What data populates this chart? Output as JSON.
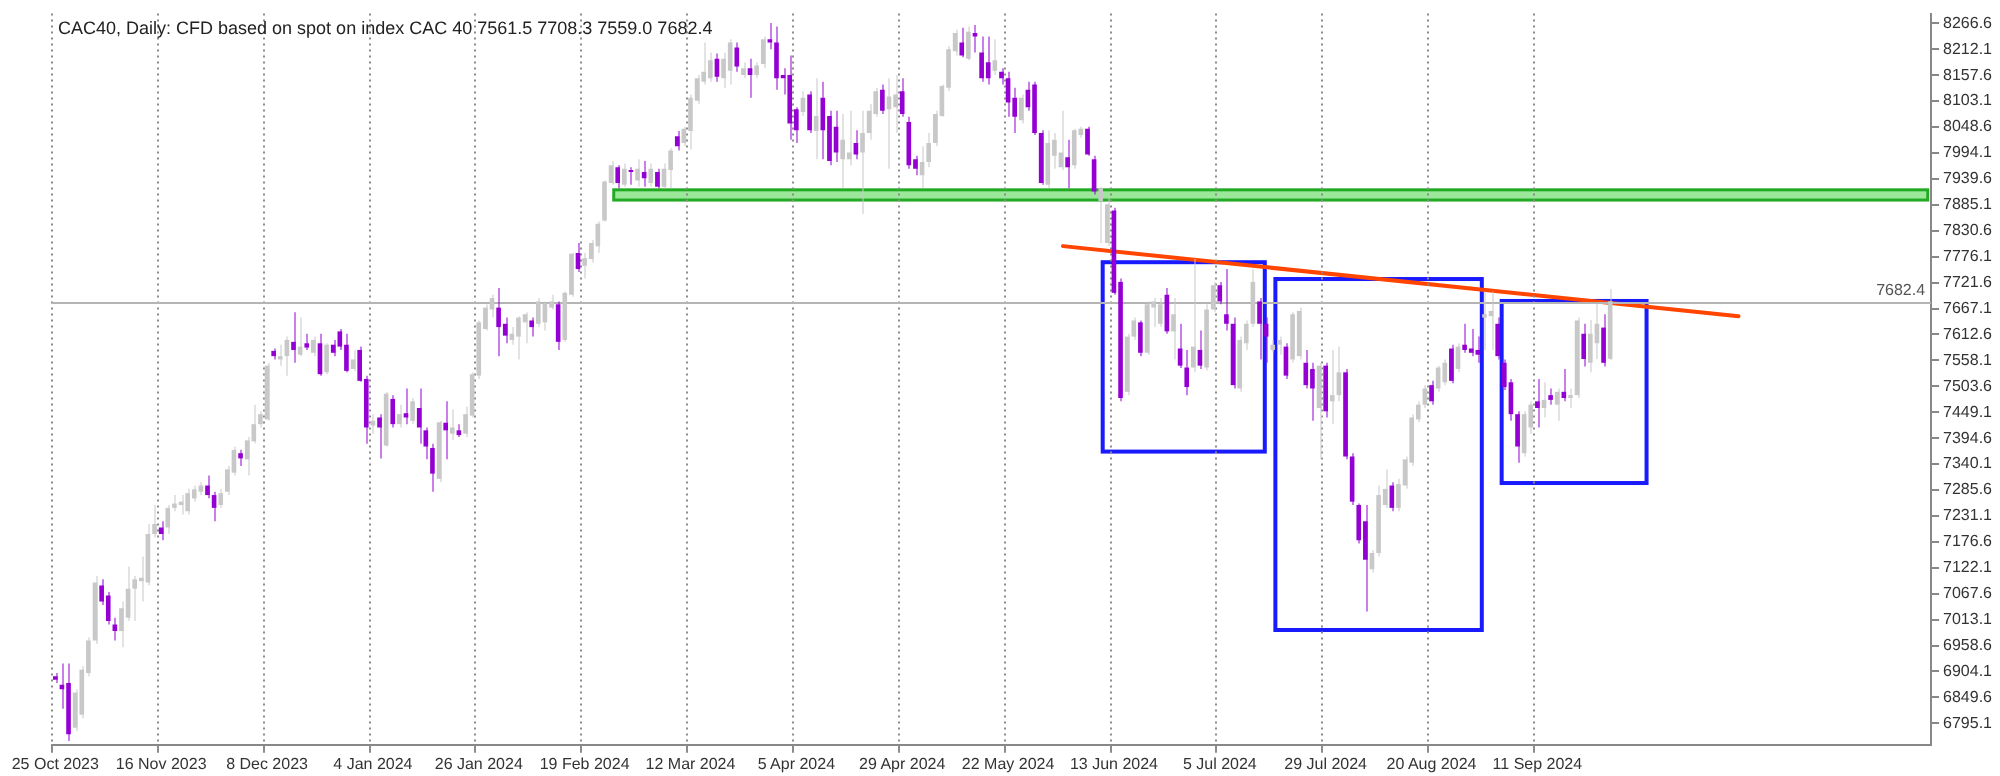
{
  "chart_data": {
    "type": "candlestick",
    "title": "CAC40, Daily: CFD based on spot on index CAC 40 7561.5 7708.3 7559.0 7682.4",
    "categories": [
      "25 Oct 2023",
      null,
      null,
      null,
      null,
      null,
      null,
      null,
      null,
      null,
      null,
      null,
      null,
      null,
      null,
      null,
      "16 Nov 2023",
      null,
      null,
      null,
      null,
      null,
      null,
      null,
      null,
      null,
      null,
      null,
      null,
      null,
      null,
      null,
      "8 Dec 2023",
      null,
      null,
      null,
      null,
      null,
      null,
      null,
      null,
      null,
      null,
      null,
      null,
      null,
      null,
      null,
      "4 Jan 2024",
      null,
      null,
      null,
      null,
      null,
      null,
      null,
      null,
      null,
      null,
      null,
      null,
      null,
      null,
      null,
      "26 Jan 2024",
      null,
      null,
      null,
      null,
      null,
      null,
      null,
      null,
      null,
      null,
      null,
      null,
      null,
      null,
      null,
      "19 Feb 2024",
      null,
      null,
      null,
      null,
      null,
      null,
      null,
      null,
      null,
      null,
      null,
      null,
      null,
      null,
      null,
      "12 Mar 2024",
      null,
      null,
      null,
      null,
      null,
      null,
      null,
      null,
      null,
      null,
      null,
      null,
      null,
      null,
      null,
      "5 Apr 2024",
      null,
      null,
      null,
      null,
      null,
      null,
      null,
      null,
      null,
      null,
      null,
      null,
      null,
      null,
      null,
      "29 Apr 2024",
      null,
      null,
      null,
      null,
      null,
      null,
      null,
      null,
      null,
      null,
      null,
      null,
      null,
      null,
      null,
      "22 May 2024",
      null,
      null,
      null,
      null,
      null,
      null,
      null,
      null,
      null,
      null,
      null,
      null,
      null,
      null,
      null,
      "13 Jun 2024",
      null,
      null,
      null,
      null,
      null,
      null,
      null,
      null,
      null,
      null,
      null,
      null,
      null,
      null,
      null,
      "5 Jul 2024",
      null,
      null,
      null,
      null,
      null,
      null,
      null,
      null,
      null,
      null,
      null,
      null,
      null,
      null,
      null,
      "29 Jul 2024",
      null,
      null,
      null,
      null,
      null,
      null,
      null,
      null,
      null,
      null,
      null,
      null,
      null,
      null,
      null,
      "20 Aug 2024",
      null,
      null,
      null,
      null,
      null,
      null,
      null,
      null,
      null,
      null,
      null,
      null,
      null,
      null,
      null,
      "11 Sep 2024",
      null,
      null,
      null,
      null,
      null,
      null,
      null,
      null,
      null,
      null,
      null,
      null,
      null,
      null,
      null,
      null,
      null,
      null,
      null,
      null,
      null,
      null,
      null,
      null,
      null,
      null,
      null,
      null,
      null,
      null,
      null,
      null,
      null,
      null,
      null,
      null,
      null,
      null,
      null,
      null,
      null,
      null,
      null,
      null,
      null,
      null,
      null,
      null,
      null,
      null,
      null,
      null,
      null,
      null,
      null,
      null,
      null,
      null,
      null
    ],
    "ohlc": [
      [
        6894,
        6901,
        6880,
        6887
      ],
      [
        6876,
        6921,
        6826,
        6867
      ],
      [
        6880,
        6921,
        6758,
        6772
      ],
      [
        6786,
        6867,
        6779,
        6860
      ],
      [
        6813,
        6915,
        6806,
        6908
      ],
      [
        6901,
        6976,
        6894,
        6969
      ],
      [
        6969,
        7105,
        6962,
        7091
      ],
      [
        7085,
        7098,
        7044,
        7051
      ],
      [
        7064,
        7071,
        7003,
        7010
      ],
      [
        7003,
        7017,
        6969,
        6989
      ],
      [
        6989,
        7051,
        6955,
        7037
      ],
      [
        7017,
        7125,
        7010,
        7078
      ],
      [
        7078,
        7105,
        7010,
        7098
      ],
      [
        7094,
        7146,
        7051,
        7101
      ],
      [
        7091,
        7214,
        7085,
        7193
      ],
      [
        7193,
        7254,
        7186,
        7214
      ],
      [
        7207,
        7220,
        7180,
        7193
      ],
      [
        7207,
        7254,
        7193,
        7248
      ],
      [
        7248,
        7275,
        7241,
        7257
      ],
      [
        7254,
        7275,
        7234,
        7261
      ],
      [
        7241,
        7288,
        7234,
        7279
      ],
      [
        7268,
        7295,
        7261,
        7287
      ],
      [
        7282,
        7302,
        7275,
        7295
      ],
      [
        7295,
        7316,
        7268,
        7275
      ],
      [
        7275,
        7282,
        7220,
        7248
      ],
      [
        7254,
        7288,
        7248,
        7279
      ],
      [
        7282,
        7336,
        7275,
        7329
      ],
      [
        7322,
        7377,
        7316,
        7370
      ],
      [
        7363,
        7370,
        7336,
        7352
      ],
      [
        7350,
        7397,
        7316,
        7390
      ],
      [
        7388,
        7465,
        7384,
        7424
      ],
      [
        7424,
        7451,
        7417,
        7445
      ],
      [
        7434,
        7553,
        7431,
        7547
      ],
      [
        7578,
        7583,
        7560,
        7567
      ],
      [
        7560,
        7591,
        7547,
        7567
      ],
      [
        7567,
        7608,
        7526,
        7601
      ],
      [
        7597,
        7659,
        7553,
        7580
      ],
      [
        7570,
        7648,
        7567,
        7587
      ],
      [
        7594,
        7614,
        7580,
        7585
      ],
      [
        7574,
        7608,
        7567,
        7601
      ],
      [
        7594,
        7614,
        7526,
        7529
      ],
      [
        7533,
        7594,
        7529,
        7591
      ],
      [
        7591,
        7601,
        7567,
        7574
      ],
      [
        7619,
        7624,
        7580,
        7587
      ],
      [
        7591,
        7614,
        7533,
        7536
      ],
      [
        7540,
        7580,
        7536,
        7560
      ],
      [
        7580,
        7587,
        7513,
        7515
      ],
      [
        7519,
        7526,
        7383,
        7417
      ],
      [
        7421,
        7445,
        7404,
        7431
      ],
      [
        7438,
        7445,
        7352,
        7417
      ],
      [
        7379,
        7492,
        7377,
        7488
      ],
      [
        7477,
        7485,
        7417,
        7424
      ],
      [
        7424,
        7465,
        7417,
        7445
      ],
      [
        7447,
        7499,
        7424,
        7438
      ],
      [
        7431,
        7479,
        7424,
        7472
      ],
      [
        7458,
        7499,
        7383,
        7417
      ],
      [
        7411,
        7417,
        7350,
        7377
      ],
      [
        7374,
        7383,
        7282,
        7320
      ],
      [
        7309,
        7431,
        7302,
        7428
      ],
      [
        7427,
        7472,
        7350,
        7411
      ],
      [
        7404,
        7455,
        7390,
        7417
      ],
      [
        7411,
        7424,
        7397,
        7401
      ],
      [
        7404,
        7461,
        7397,
        7445
      ],
      [
        7442,
        7533,
        7438,
        7529
      ],
      [
        7526,
        7642,
        7519,
        7638
      ],
      [
        7624,
        7676,
        7621,
        7669
      ],
      [
        7665,
        7696,
        7648,
        7689
      ],
      [
        7669,
        7710,
        7567,
        7628
      ],
      [
        7635,
        7648,
        7594,
        7610
      ],
      [
        7601,
        7628,
        7591,
        7614
      ],
      [
        7608,
        7651,
        7560,
        7648
      ],
      [
        7638,
        7659,
        7594,
        7655
      ],
      [
        7642,
        7648,
        7608,
        7628
      ],
      [
        7635,
        7689,
        7628,
        7682
      ],
      [
        7638,
        7682,
        7621,
        7678
      ],
      [
        7669,
        7696,
        7665,
        7682
      ],
      [
        7676,
        7682,
        7580,
        7597
      ],
      [
        7601,
        7703,
        7597,
        7700
      ],
      [
        7696,
        7784,
        7692,
        7782
      ],
      [
        7784,
        7805,
        7744,
        7750
      ],
      [
        7757,
        7784,
        7730,
        7773
      ],
      [
        7771,
        7811,
        7764,
        7805
      ],
      [
        7798,
        7850,
        7784,
        7845
      ],
      [
        7852,
        7936,
        7850,
        7934
      ],
      [
        7931,
        7977,
        7927,
        7968
      ],
      [
        7964,
        7968,
        7920,
        7931
      ],
      [
        7927,
        7972,
        7923,
        7961
      ],
      [
        7958,
        7964,
        7927,
        7954
      ],
      [
        7936,
        7981,
        7923,
        7961
      ],
      [
        7954,
        7977,
        7923,
        7941
      ],
      [
        7931,
        7972,
        7923,
        7961
      ],
      [
        7954,
        7961,
        7920,
        7923
      ],
      [
        7923,
        7972,
        7920,
        7961
      ],
      [
        7958,
        8004,
        7920,
        7999
      ],
      [
        8029,
        8040,
        7999,
        8008
      ],
      [
        8015,
        8049,
        8008,
        8045
      ],
      [
        8040,
        8117,
        8002,
        8110
      ],
      [
        8104,
        8158,
        8097,
        8151
      ],
      [
        8144,
        8226,
        8138,
        8165
      ],
      [
        8151,
        8205,
        8144,
        8189
      ],
      [
        8192,
        8203,
        8144,
        8154
      ],
      [
        8151,
        8205,
        8131,
        8192
      ],
      [
        8167,
        8233,
        8138,
        8226
      ],
      [
        8216,
        8226,
        8165,
        8176
      ],
      [
        8158,
        8185,
        8151,
        8172
      ],
      [
        8172,
        8192,
        8110,
        8158
      ],
      [
        8158,
        8185,
        8151,
        8178
      ],
      [
        8181,
        8239,
        8172,
        8233
      ],
      [
        8233,
        8267,
        8212,
        8226
      ],
      [
        8226,
        8260,
        8127,
        8151
      ],
      [
        8158,
        8172,
        8117,
        8151
      ],
      [
        8158,
        8199,
        8022,
        8056
      ],
      [
        8086,
        8090,
        8015,
        8042
      ],
      [
        8080,
        8124,
        8072,
        8110
      ],
      [
        8117,
        8124,
        8036,
        8042
      ],
      [
        8040,
        8151,
        7981,
        8072
      ],
      [
        8110,
        8144,
        7981,
        8042
      ],
      [
        8072,
        8083,
        7968,
        7977
      ],
      [
        8049,
        8083,
        7975,
        7995
      ],
      [
        7981,
        8076,
        7920,
        8022
      ],
      [
        7981,
        8083,
        7968,
        7995
      ],
      [
        8015,
        8042,
        7981,
        7991
      ],
      [
        7995,
        8083,
        7866,
        8036
      ],
      [
        8036,
        8097,
        8022,
        8083
      ],
      [
        8076,
        8131,
        8070,
        8124
      ],
      [
        8127,
        8138,
        8076,
        8083
      ],
      [
        8086,
        8151,
        7961,
        8113
      ],
      [
        8090,
        8158,
        8036,
        8117
      ],
      [
        8124,
        8151,
        8070,
        8076
      ],
      [
        8059,
        8070,
        7961,
        7968
      ],
      [
        7981,
        7988,
        7947,
        7961
      ],
      [
        7947,
        8008,
        7920,
        7975
      ],
      [
        7975,
        8036,
        7964,
        8015
      ],
      [
        8015,
        8083,
        8008,
        8076
      ],
      [
        8072,
        8138,
        8070,
        8135
      ],
      [
        8131,
        8219,
        8124,
        8212
      ],
      [
        8208,
        8253,
        8199,
        8246
      ],
      [
        8226,
        8257,
        8195,
        8199
      ],
      [
        8192,
        8260,
        8189,
        8249
      ],
      [
        8246,
        8263,
        8205,
        8239
      ],
      [
        8205,
        8239,
        8144,
        8151
      ],
      [
        8185,
        8239,
        8138,
        8151
      ],
      [
        8167,
        8233,
        8158,
        8189
      ],
      [
        8165,
        8172,
        8138,
        8151
      ],
      [
        8151,
        8165,
        8070,
        8100
      ],
      [
        8110,
        8131,
        8036,
        8070
      ],
      [
        8063,
        8117,
        8056,
        8110
      ],
      [
        8127,
        8144,
        8083,
        8090
      ],
      [
        8138,
        8144,
        8032,
        8036
      ],
      [
        8036,
        8042,
        7927,
        7931
      ],
      [
        7927,
        8042,
        7920,
        8015
      ],
      [
        7988,
        8036,
        7961,
        8022
      ],
      [
        7964,
        8083,
        7958,
        7995
      ],
      [
        7985,
        8022,
        7920,
        7964
      ],
      [
        7968,
        8045,
        7961,
        8042
      ],
      [
        8032,
        8049,
        8026,
        8045
      ],
      [
        8045,
        8049,
        7988,
        7991
      ],
      [
        7981,
        7988,
        7907,
        7913
      ],
      [
        7893,
        7923,
        7805,
        7920
      ],
      [
        7805,
        7900,
        7798,
        7886
      ],
      [
        7873,
        7879,
        7696,
        7700
      ],
      [
        7723,
        7730,
        7472,
        7479
      ],
      [
        7492,
        7614,
        7485,
        7608
      ],
      [
        7608,
        7648,
        7601,
        7642
      ],
      [
        7638,
        7642,
        7567,
        7574
      ],
      [
        7574,
        7682,
        7570,
        7676
      ],
      [
        7669,
        7689,
        7628,
        7682
      ],
      [
        7635,
        7689,
        7628,
        7676
      ],
      [
        7696,
        7710,
        7614,
        7619
      ],
      [
        7619,
        7689,
        7560,
        7655
      ],
      [
        7583,
        7635,
        7542,
        7547
      ],
      [
        7543,
        7580,
        7485,
        7502
      ],
      [
        7543,
        7771,
        7533,
        7587
      ],
      [
        7580,
        7621,
        7540,
        7547
      ],
      [
        7543,
        7676,
        7537,
        7665
      ],
      [
        7665,
        7723,
        7659,
        7716
      ],
      [
        7716,
        7723,
        7676,
        7682
      ],
      [
        7655,
        7750,
        7621,
        7635
      ],
      [
        7635,
        7648,
        7499,
        7506
      ],
      [
        7499,
        7608,
        7492,
        7601
      ],
      [
        7594,
        7642,
        7580,
        7635
      ],
      [
        7635,
        7750,
        7628,
        7723
      ],
      [
        7682,
        7689,
        7560,
        7635
      ],
      [
        7635,
        7648,
        7553,
        7608
      ],
      [
        7580,
        7601,
        7574,
        7591
      ],
      [
        7591,
        7608,
        7570,
        7601
      ],
      [
        7587,
        7594,
        7519,
        7526
      ],
      [
        7560,
        7659,
        7553,
        7655
      ],
      [
        7567,
        7669,
        7560,
        7662
      ],
      [
        7553,
        7580,
        7499,
        7506
      ],
      [
        7540,
        7553,
        7431,
        7499
      ],
      [
        7458,
        7553,
        7350,
        7547
      ],
      [
        7547,
        7553,
        7438,
        7451
      ],
      [
        7472,
        7580,
        7424,
        7485
      ],
      [
        7485,
        7587,
        7472,
        7533
      ],
      [
        7533,
        7540,
        7350,
        7356
      ],
      [
        7356,
        7363,
        7254,
        7261
      ],
      [
        7254,
        7257,
        7173,
        7180
      ],
      [
        7220,
        7254,
        7030,
        7139
      ],
      [
        7119,
        7159,
        7112,
        7153
      ],
      [
        7153,
        7295,
        7146,
        7275
      ],
      [
        7254,
        7329,
        7248,
        7288
      ],
      [
        7295,
        7302,
        7241,
        7248
      ],
      [
        7248,
        7309,
        7241,
        7298
      ],
      [
        7295,
        7356,
        7288,
        7350
      ],
      [
        7343,
        7445,
        7336,
        7438
      ],
      [
        7434,
        7472,
        7428,
        7465
      ],
      [
        7465,
        7506,
        7458,
        7499
      ],
      [
        7506,
        7515,
        7465,
        7472
      ],
      [
        7499,
        7547,
        7492,
        7543
      ],
      [
        7512,
        7560,
        7506,
        7553
      ],
      [
        7583,
        7591,
        7510,
        7515
      ],
      [
        7540,
        7594,
        7533,
        7587
      ],
      [
        7591,
        7635,
        7574,
        7580
      ],
      [
        7583,
        7624,
        7567,
        7574
      ],
      [
        7580,
        7608,
        7553,
        7570
      ],
      [
        7648,
        7703,
        7580,
        7655
      ],
      [
        7651,
        7703,
        7580,
        7662
      ],
      [
        7635,
        7648,
        7560,
        7567
      ],
      [
        7553,
        7560,
        7496,
        7502
      ],
      [
        7512,
        7519,
        7431,
        7445
      ],
      [
        7445,
        7451,
        7343,
        7377
      ],
      [
        7363,
        7451,
        7356,
        7445
      ],
      [
        7417,
        7472,
        7404,
        7465
      ],
      [
        7472,
        7519,
        7417,
        7458
      ],
      [
        7458,
        7512,
        7438,
        7475
      ],
      [
        7485,
        7499,
        7465,
        7475
      ],
      [
        7465,
        7499,
        7431,
        7492
      ],
      [
        7492,
        7540,
        7472,
        7479
      ],
      [
        7479,
        7499,
        7458,
        7485
      ],
      [
        7485,
        7648,
        7479,
        7642
      ],
      [
        7614,
        7635,
        7545,
        7561
      ],
      [
        7553,
        7643,
        7533,
        7614
      ],
      [
        7594,
        7676,
        7561,
        7635
      ],
      [
        7627,
        7655,
        7545,
        7553
      ],
      [
        7561.5,
        7708.3,
        7559.0,
        7682.4
      ],
      null,
      null,
      null,
      null,
      null,
      null,
      null,
      null,
      null,
      null,
      null,
      null,
      null,
      null,
      null,
      null,
      null,
      null,
      null,
      null,
      null,
      null,
      null,
      null,
      null,
      null,
      null,
      null,
      null,
      null,
      null,
      null,
      null,
      null,
      null,
      null,
      null,
      null,
      null,
      null,
      null,
      null,
      null,
      null,
      null,
      null,
      null,
      null
    ],
    "colors": [
      "#9400d3",
      "#9400d3",
      "#9400d3",
      "#c8c8c8",
      "#c8c8c8",
      "#c8c8c8",
      "#c8c8c8",
      "#9400d3",
      "#9400d3",
      "#9400d3",
      "#c8c8c8",
      "#c8c8c8",
      "#c8c8c8",
      "#c8c8c8",
      "#c8c8c8",
      "#c8c8c8",
      "#9400d3",
      "#c8c8c8",
      "#c8c8c8",
      "#c8c8c8",
      "#c8c8c8",
      "#c8c8c8",
      "#c8c8c8",
      "#9400d3",
      "#9400d3",
      "#c8c8c8",
      "#c8c8c8",
      "#c8c8c8",
      "#9400d3",
      "#c8c8c8",
      "#c8c8c8",
      "#c8c8c8",
      "#c8c8c8",
      "#9400d3",
      "#c8c8c8",
      "#c8c8c8",
      "#9400d3",
      "#c8c8c8",
      "#9400d3",
      "#c8c8c8",
      "#9400d3",
      "#c8c8c8",
      "#9400d3",
      "#9400d3",
      "#9400d3",
      "#c8c8c8",
      "#9400d3",
      "#9400d3",
      "#c8c8c8",
      "#9400d3",
      "#c8c8c8",
      "#9400d3",
      "#c8c8c8",
      "#9400d3",
      "#c8c8c8",
      "#9400d3",
      "#9400d3",
      "#9400d3",
      "#c8c8c8",
      "#9400d3",
      "#c8c8c8",
      "#9400d3",
      "#c8c8c8",
      "#c8c8c8",
      "#c8c8c8",
      "#c8c8c8",
      "#c8c8c8",
      "#9400d3",
      "#9400d3",
      "#c8c8c8",
      "#c8c8c8",
      "#c8c8c8",
      "#9400d3",
      "#c8c8c8",
      "#c8c8c8",
      "#c8c8c8",
      "#9400d3",
      "#c8c8c8",
      "#c8c8c8",
      "#9400d3",
      "#c8c8c8",
      "#c8c8c8",
      "#c8c8c8",
      "#c8c8c8",
      "#c8c8c8",
      "#9400d3",
      "#c8c8c8",
      "#9400d3",
      "#c8c8c8",
      "#9400d3",
      "#c8c8c8",
      "#9400d3",
      "#c8c8c8",
      "#c8c8c8",
      "#9400d3",
      "#c8c8c8",
      "#c8c8c8",
      "#c8c8c8",
      "#c8c8c8",
      "#c8c8c8",
      "#9400d3",
      "#c8c8c8",
      "#c8c8c8",
      "#9400d3",
      "#c8c8c8",
      "#9400d3",
      "#c8c8c8",
      "#c8c8c8",
      "#9400d3",
      "#9400d3",
      "#9400d3",
      "#9400d3",
      "#9400d3",
      "#c8c8c8",
      "#9400d3",
      "#c8c8c8",
      "#9400d3",
      "#9400d3",
      "#9400d3",
      "#c8c8c8",
      "#c8c8c8",
      "#9400d3",
      "#c8c8c8",
      "#c8c8c8",
      "#c8c8c8",
      "#9400d3",
      "#c8c8c8",
      "#c8c8c8",
      "#9400d3",
      "#9400d3",
      "#9400d3",
      "#c8c8c8",
      "#c8c8c8",
      "#c8c8c8",
      "#c8c8c8",
      "#c8c8c8",
      "#c8c8c8",
      "#9400d3",
      "#c8c8c8",
      "#9400d3",
      "#9400d3",
      "#9400d3",
      "#c8c8c8",
      "#9400d3",
      "#9400d3",
      "#9400d3",
      "#c8c8c8",
      "#9400d3",
      "#9400d3",
      "#9400d3",
      "#c8c8c8",
      "#c8c8c8",
      "#c8c8c8",
      "#9400d3",
      "#c8c8c8",
      "#c8c8c8",
      "#9400d3",
      "#9400d3",
      "#c8c8c8",
      "#c8c8c8",
      "#9400d3",
      "#9400d3",
      "#c8c8c8",
      "#c8c8c8",
      "#9400d3",
      "#c8c8c8",
      "#c8c8c8",
      "#c8c8c8",
      "#9400d3",
      "#c8c8c8",
      "#9400d3",
      "#9400d3",
      "#c8c8c8",
      "#9400d3",
      "#c8c8c8",
      "#c8c8c8",
      "#9400d3",
      "#9400d3",
      "#9400d3",
      "#c8c8c8",
      "#c8c8c8",
      "#c8c8c8",
      "#9400d3",
      "#9400d3",
      "#c8c8c8",
      "#c8c8c8",
      "#9400d3",
      "#c8c8c8",
      "#c8c8c8",
      "#9400d3",
      "#9400d3",
      "#c8c8c8",
      "#9400d3",
      "#c8c8c8",
      "#c8c8c8",
      "#9400d3",
      "#9400d3",
      "#9400d3",
      "#9400d3",
      "#c8c8c8",
      "#c8c8c8",
      "#c8c8c8",
      "#9400d3",
      "#c8c8c8",
      "#c8c8c8",
      "#c8c8c8",
      "#c8c8c8",
      "#c8c8c8",
      "#9400d3",
      "#c8c8c8",
      "#c8c8c8",
      "#9400d3",
      "#c8c8c8",
      "#9400d3",
      "#9400d3",
      "#9400d3",
      "#c8c8c8",
      "#c8c8c8",
      "#9400d3",
      "#9400d3",
      "#9400d3",
      "#9400d3",
      "#c8c8c8",
      "#c8c8c8",
      "#9400d3",
      "#c8c8c8",
      "#9400d3",
      "#c8c8c8",
      "#9400d3",
      "#c8c8c8",
      "#c8c8c8",
      "#9400d3",
      "#c8c8c8",
      "#c8c8c8",
      "#9400d3",
      "#c8c8c8",
      null,
      null,
      null,
      null,
      null,
      null,
      null,
      null,
      null,
      null,
      null,
      null,
      null,
      null,
      null,
      null,
      null,
      null,
      null,
      null,
      null,
      null,
      null,
      null,
      null,
      null,
      null,
      null,
      null,
      null,
      null,
      null,
      null,
      null,
      null,
      null,
      null,
      null,
      null,
      null,
      null,
      null,
      null,
      null,
      null,
      null,
      null,
      null
    ],
    "ylim": [
      6750,
      8287
    ],
    "yticks": [
      8266.6,
      8212.1,
      8157.6,
      8103.1,
      8048.6,
      7994.1,
      7939.6,
      7885.1,
      7830.6,
      7776.1,
      7721.6,
      7667.1,
      7612.6,
      7558.1,
      7503.6,
      7449.1,
      7394.6,
      7340.1,
      7285.6,
      7231.1,
      7176.6,
      7122.1,
      7067.6,
      7013.1,
      6958.6,
      6904.1,
      6849.6,
      6795.1
    ],
    "grid": "x",
    "ref_lines": [
      {
        "axis": "y",
        "value": 7682.4,
        "label": "7682.4",
        "color": "#b4b4b4"
      }
    ]
  }
}
